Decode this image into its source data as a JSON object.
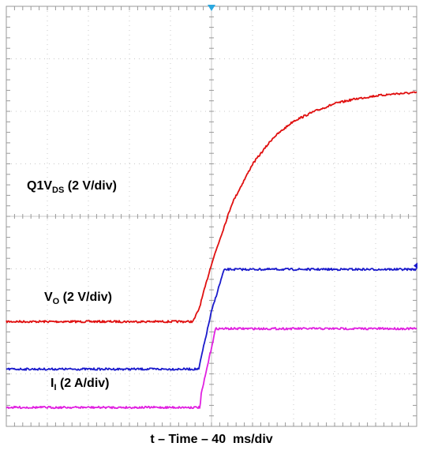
{
  "chart_data": {
    "type": "line",
    "xlabel": "t – Time – 40  ms/div",
    "x_divisions": 10,
    "y_divisions": 8,
    "grid": true,
    "trigger_marker": {
      "x_div": 5,
      "color": "#2aa8e0"
    },
    "channel_markers": [
      {
        "x_div": 10,
        "y_div": 5.0,
        "color": "#1a1acc"
      }
    ],
    "series": [
      {
        "name": "Q1",
        "label": {
          "main": "Q1V",
          "sub": "DS",
          "rest": " (2 V/div)"
        },
        "color": "#e01010",
        "points_div": [
          [
            0,
            0.0
          ],
          [
            4.55,
            0.0
          ],
          [
            4.7,
            0.25
          ],
          [
            5.0,
            1.1
          ],
          [
            5.5,
            2.25
          ],
          [
            6.0,
            3.0
          ],
          [
            6.5,
            3.5
          ],
          [
            7.0,
            3.82
          ],
          [
            7.5,
            4.0
          ],
          [
            8.0,
            4.15
          ],
          [
            8.5,
            4.24
          ],
          [
            9.0,
            4.3
          ],
          [
            9.5,
            4.34
          ],
          [
            10.0,
            4.36
          ]
        ]
      },
      {
        "name": "VO",
        "label": {
          "main": "V",
          "sub": "O",
          "rest": " (2 V/div)"
        },
        "color": "#1a1acc",
        "points_div": [
          [
            0,
            0.0
          ],
          [
            4.7,
            0.0
          ],
          [
            4.72,
            0.12
          ],
          [
            5.0,
            1.1
          ],
          [
            5.3,
            1.88
          ],
          [
            5.4,
            1.9
          ],
          [
            10.0,
            1.9
          ]
        ]
      },
      {
        "name": "II",
        "label": {
          "main": "I",
          "sub": "I",
          "rest": " (2 A/div)"
        },
        "color": "#e020e0",
        "points_div": [
          [
            0,
            0.0
          ],
          [
            4.72,
            0.0
          ],
          [
            4.75,
            0.25
          ],
          [
            5.1,
            1.5
          ],
          [
            5.4,
            1.5
          ],
          [
            10.0,
            1.5
          ]
        ]
      }
    ]
  }
}
